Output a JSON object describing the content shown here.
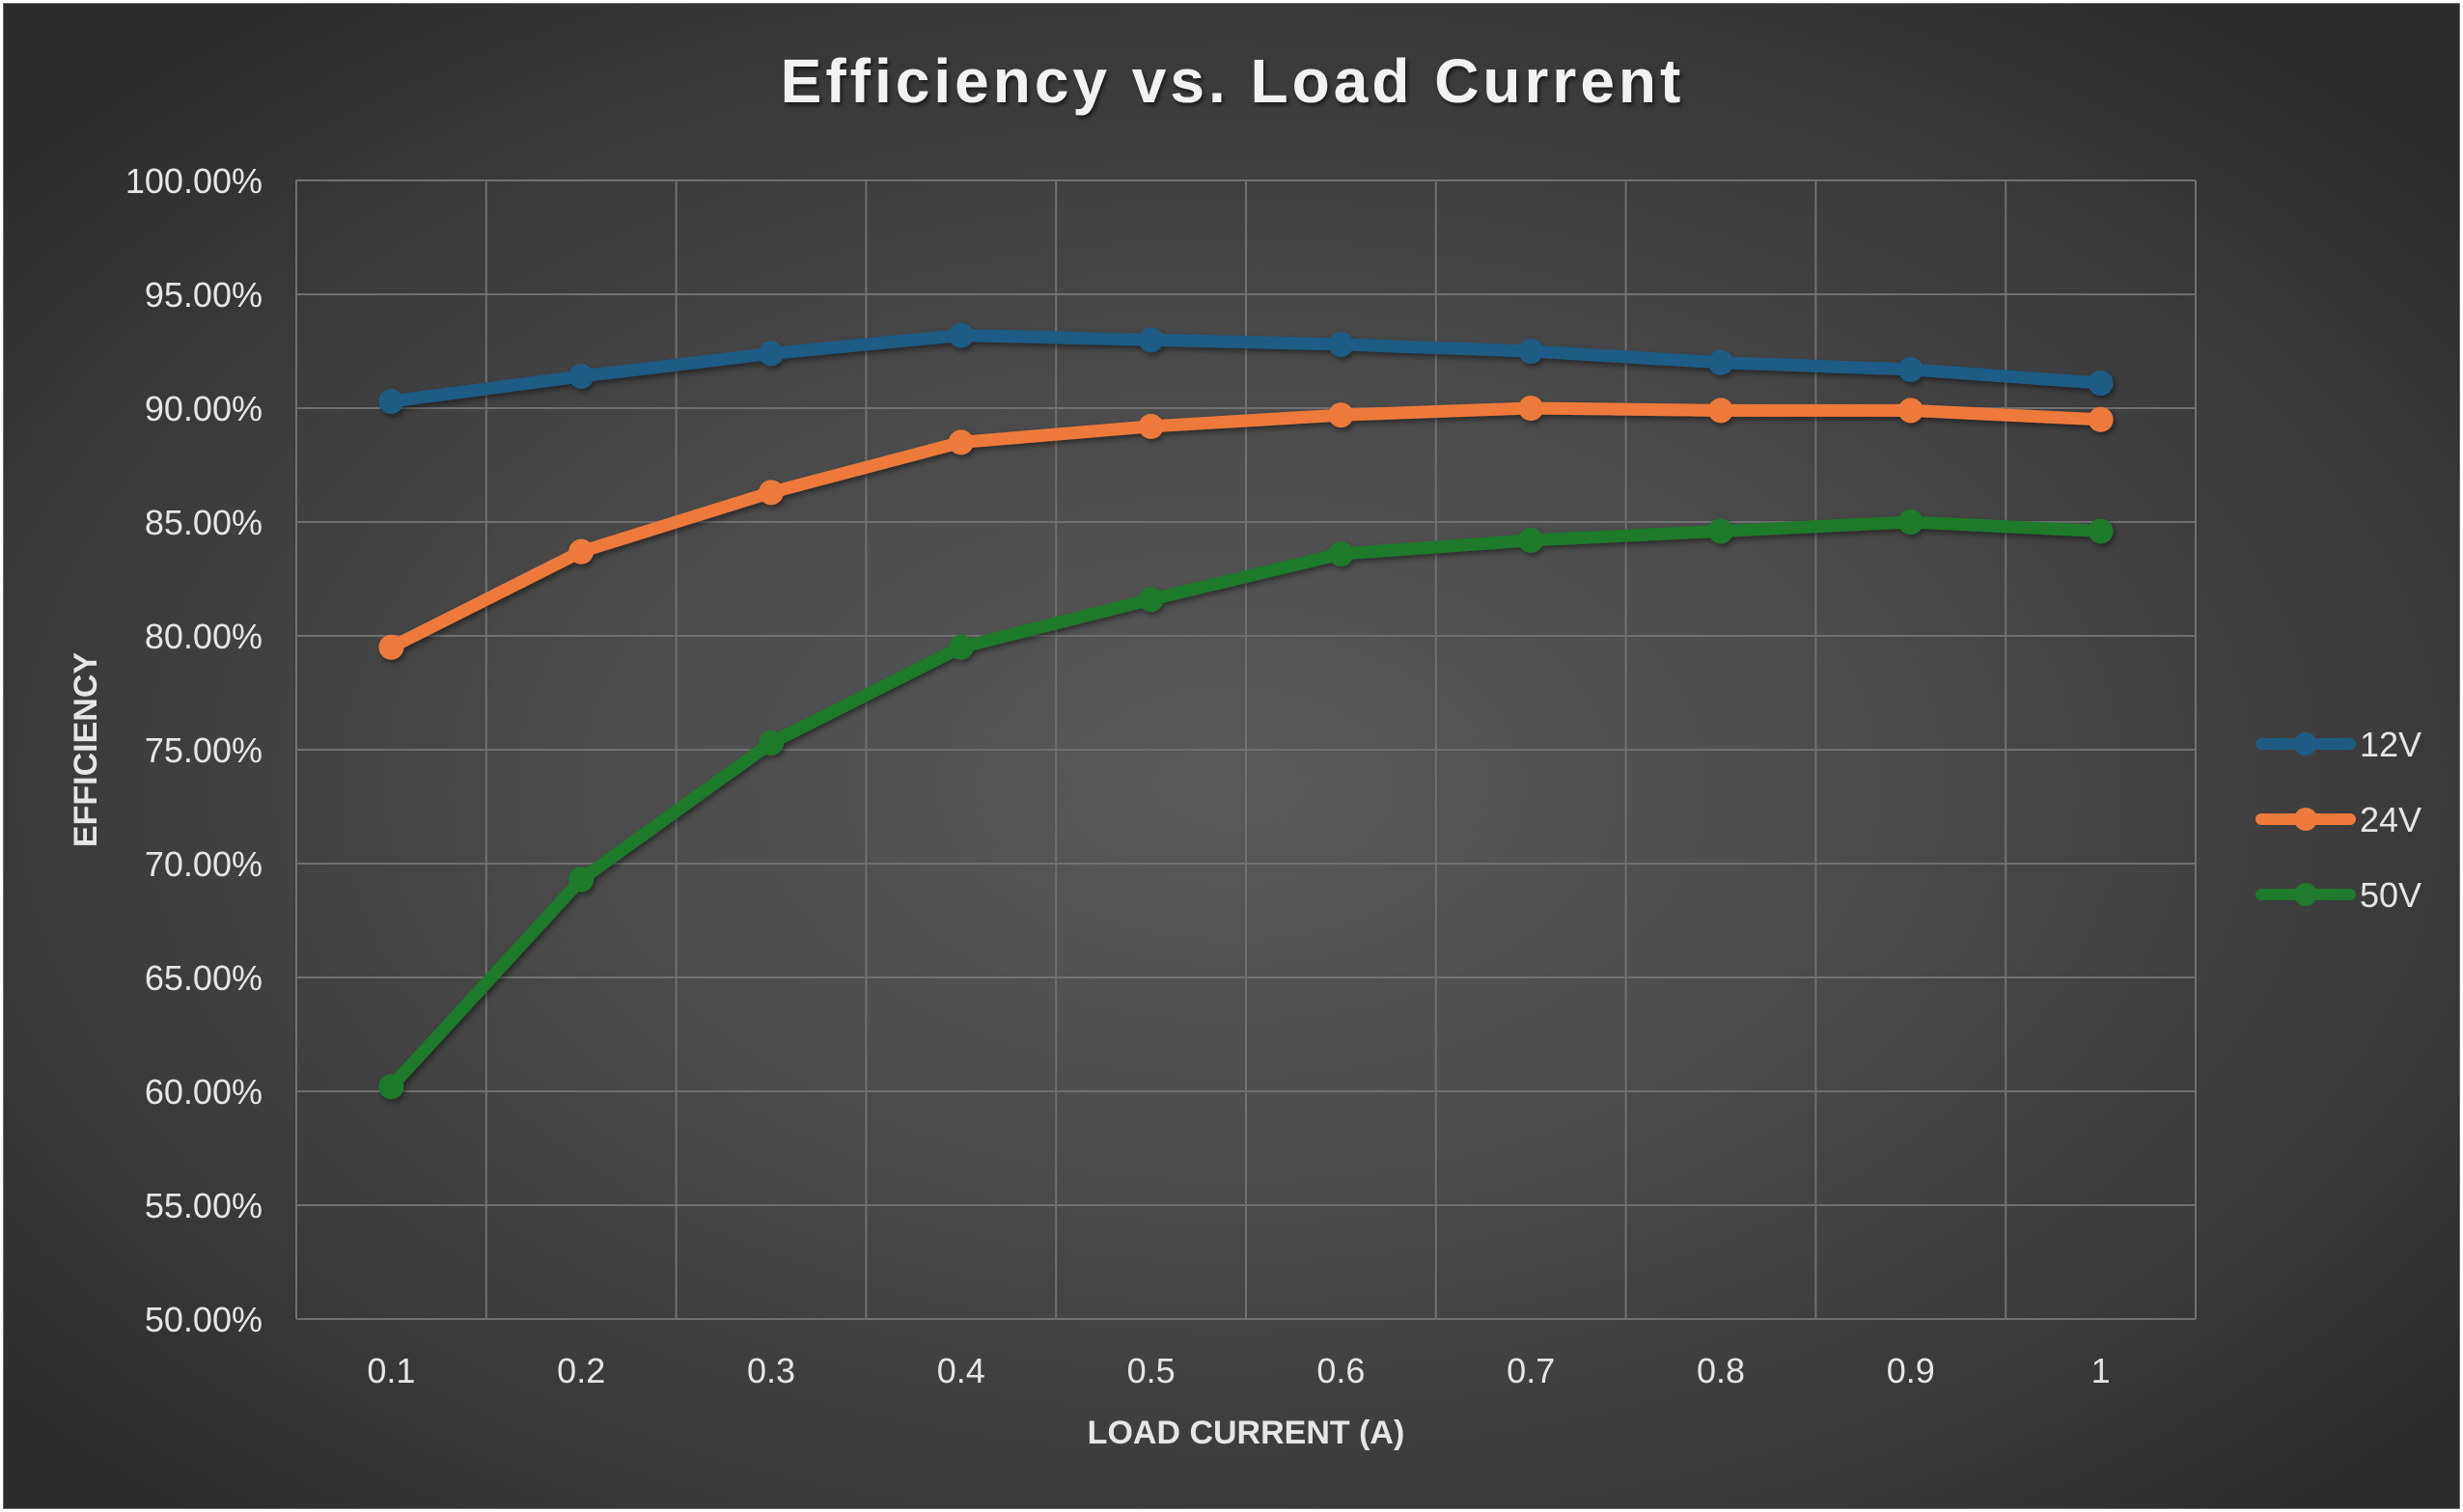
{
  "chart_data": {
    "type": "line",
    "title": "Efficiency vs. Load Current",
    "xlabel": "LOAD CURRENT (A)",
    "ylabel": "EFFICIENCY",
    "categories": [
      "0.1",
      "0.2",
      "0.3",
      "0.4",
      "0.5",
      "0.6",
      "0.7",
      "0.8",
      "0.9",
      "1"
    ],
    "y_ticks": [
      "100.00%",
      "95.00%",
      "90.00%",
      "85.00%",
      "80.00%",
      "75.00%",
      "70.00%",
      "65.00%",
      "60.00%",
      "55.00%",
      "50.00%"
    ],
    "ylim": [
      50,
      100
    ],
    "grid": true,
    "legend_position": "right",
    "series": [
      {
        "name": "12V",
        "color": "#1f5c85",
        "values": [
          90.3,
          91.4,
          92.4,
          93.2,
          93.0,
          92.8,
          92.5,
          92.0,
          91.7,
          91.1
        ]
      },
      {
        "name": "24V",
        "color": "#ed7a3a",
        "values": [
          79.5,
          83.7,
          86.3,
          88.5,
          89.2,
          89.7,
          90.0,
          89.9,
          89.9,
          89.5
        ]
      },
      {
        "name": "50V",
        "color": "#1e7a2c",
        "values": [
          60.2,
          69.3,
          75.3,
          79.5,
          81.6,
          83.6,
          84.2,
          84.6,
          85.0,
          84.6
        ]
      }
    ]
  }
}
